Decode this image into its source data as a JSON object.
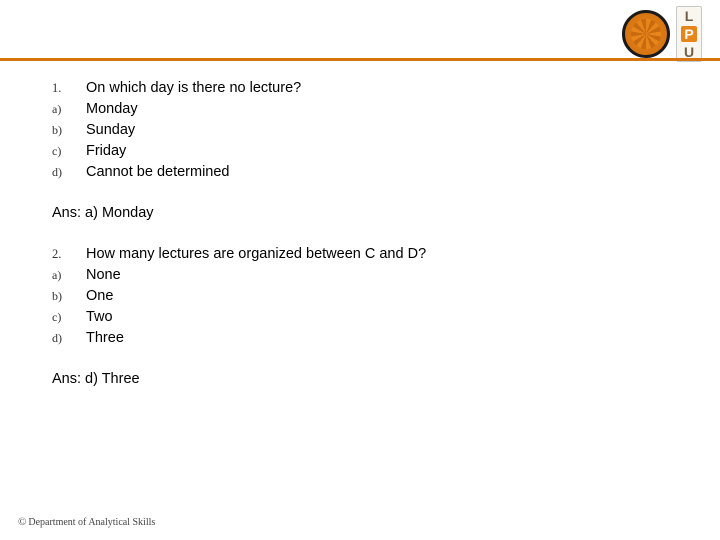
{
  "header": {
    "lpu_letters": [
      "L",
      "P",
      "U"
    ]
  },
  "divider_color": "#d67512",
  "questions": [
    {
      "number": "1.",
      "text": "On which day is there no lecture?",
      "options": [
        {
          "marker": "a)",
          "text": "Monday"
        },
        {
          "marker": "b)",
          "text": "Sunday"
        },
        {
          "marker": "c)",
          "text": "Friday"
        },
        {
          "marker": "d)",
          "text": "Cannot be determined"
        }
      ],
      "answer": "Ans: a) Monday"
    },
    {
      "number": "2.",
      "text": "How many lectures are organized between C and D?",
      "options": [
        {
          "marker": "a)",
          "text": "None"
        },
        {
          "marker": "b)",
          "text": "One"
        },
        {
          "marker": "c)",
          "text": "Two"
        },
        {
          "marker": "d)",
          "text": "Three"
        }
      ],
      "answer": "Ans: d) Three"
    }
  ],
  "footer": {
    "copyright": "©",
    "dept": "Department of Analytical Skills"
  }
}
